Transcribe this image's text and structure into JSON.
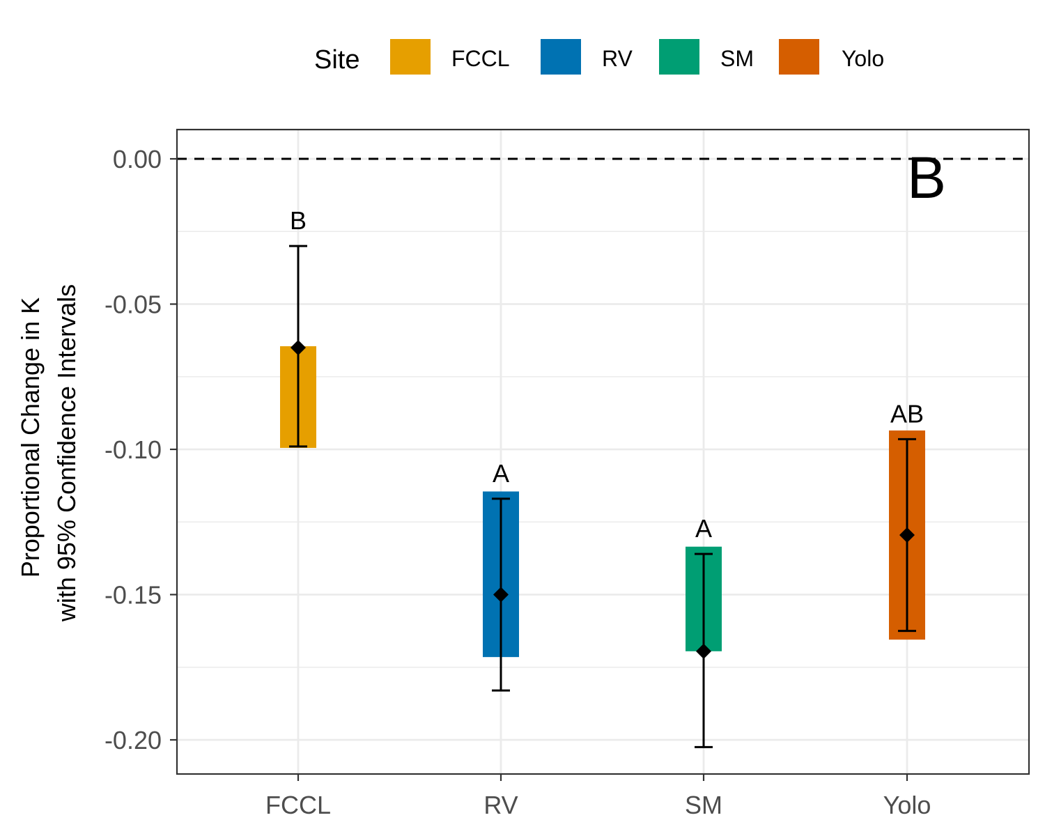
{
  "legend": {
    "title": "Site",
    "items": [
      {
        "label": "FCCL",
        "color": "#E69F00"
      },
      {
        "label": "RV",
        "color": "#0072B2"
      },
      {
        "label": "SM",
        "color": "#009E73"
      },
      {
        "label": "Yolo",
        "color": "#D55E00"
      }
    ]
  },
  "chart_data": {
    "type": "bar",
    "panel_label": "B",
    "ylabel_line1": "Proportional Change in K",
    "ylabel_line2": "with 95% Confidence Intervals",
    "xlabel": "",
    "ylim": [
      -0.212,
      0.01
    ],
    "yticks": [
      0.0,
      -0.05,
      -0.1,
      -0.15,
      -0.2
    ],
    "ytick_labels": [
      "0.00",
      "-0.05",
      "-0.10",
      "-0.15",
      "-0.20"
    ],
    "reference_line": {
      "y": 0.0,
      "style": "dashed"
    },
    "categories": [
      "FCCL",
      "RV",
      "SM",
      "Yolo"
    ],
    "series": [
      {
        "bar_low": [
          -0.0995,
          -0.1715,
          -0.1695,
          -0.1655
        ],
        "bar_high": [
          -0.0645,
          -0.1145,
          -0.1335,
          -0.0935
        ],
        "estimate": [
          -0.065,
          -0.15,
          -0.1695,
          -0.1295
        ],
        "ci_low": [
          -0.099,
          -0.183,
          -0.2025,
          -0.1625
        ],
        "ci_high": [
          -0.03,
          -0.117,
          -0.136,
          -0.0965
        ],
        "significance_letters": [
          "B",
          "A",
          "A",
          "AB"
        ]
      }
    ],
    "grid": true
  }
}
